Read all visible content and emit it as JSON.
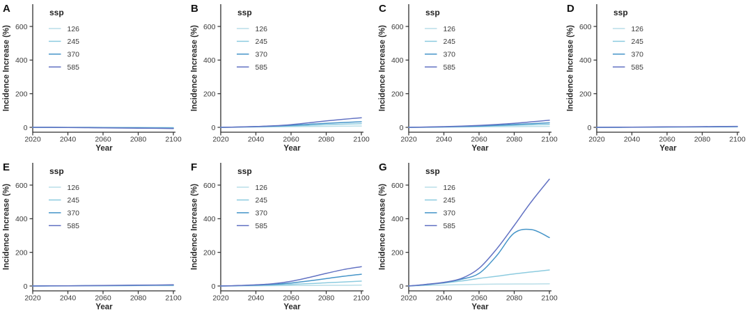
{
  "figure": {
    "ylabel": "Incidence Increase (%)",
    "xlabel": "Year",
    "legend_title": "ssp",
    "series_labels": [
      "126",
      "245",
      "370",
      "585"
    ],
    "series_colors": {
      "126": "#b9dee8",
      "245": "#8ccbdf",
      "370": "#4494c8",
      "585": "#6272c3"
    },
    "x_ticks": [
      2020,
      2040,
      2060,
      2080,
      2100
    ],
    "y_ticks": [
      0,
      200,
      400,
      600
    ],
    "axis_color": "#2e2e2e",
    "text_color": "#333333",
    "background": "#ffffff"
  },
  "chart_data": [
    {
      "type": "line",
      "panel": "A",
      "xlabel": "Year",
      "ylabel": "Incidence Increase (%)",
      "legend_title": "ssp",
      "legend_position": "top-left",
      "grid": false,
      "xlim": [
        2020,
        2100
      ],
      "ylim": [
        -25,
        700
      ],
      "x": [
        2020,
        2030,
        2040,
        2050,
        2060,
        2070,
        2080,
        2090,
        2100
      ],
      "series": [
        {
          "name": "126",
          "color": "#b9dee8",
          "values": [
            0,
            0,
            0,
            0,
            0,
            0,
            0,
            -1,
            -1
          ]
        },
        {
          "name": "245",
          "color": "#8ccbdf",
          "values": [
            0,
            0,
            0,
            0,
            -1,
            -1,
            -2,
            -2,
            -3
          ]
        },
        {
          "name": "370",
          "color": "#4494c8",
          "values": [
            0,
            0,
            -1,
            -1,
            -2,
            -3,
            -3,
            -4,
            -5
          ]
        },
        {
          "name": "585",
          "color": "#6272c3",
          "values": [
            0,
            0,
            -1,
            -2,
            -3,
            -4,
            -5,
            -6,
            -7
          ]
        }
      ]
    },
    {
      "type": "line",
      "panel": "B",
      "xlabel": "Year",
      "ylabel": "Incidence Increase (%)",
      "legend_title": "ssp",
      "legend_position": "top-left",
      "grid": false,
      "xlim": [
        2020,
        2100
      ],
      "ylim": [
        -25,
        700
      ],
      "x": [
        2020,
        2030,
        2040,
        2050,
        2060,
        2070,
        2080,
        2090,
        2100
      ],
      "series": [
        {
          "name": "126",
          "color": "#b9dee8",
          "values": [
            0,
            1,
            2,
            3,
            4,
            5,
            6,
            7,
            8
          ]
        },
        {
          "name": "245",
          "color": "#8ccbdf",
          "values": [
            0,
            1,
            3,
            5,
            8,
            12,
            16,
            19,
            22
          ]
        },
        {
          "name": "370",
          "color": "#4494c8",
          "values": [
            0,
            2,
            4,
            7,
            12,
            18,
            24,
            29,
            33
          ]
        },
        {
          "name": "585",
          "color": "#6272c3",
          "values": [
            0,
            2,
            5,
            9,
            16,
            27,
            38,
            48,
            57
          ]
        }
      ]
    },
    {
      "type": "line",
      "panel": "C",
      "xlabel": "Year",
      "ylabel": "Incidence Increase (%)",
      "legend_title": "ssp",
      "legend_position": "top-left",
      "grid": false,
      "xlim": [
        2020,
        2100
      ],
      "ylim": [
        -25,
        700
      ],
      "x": [
        2020,
        2030,
        2040,
        2050,
        2060,
        2070,
        2080,
        2090,
        2100
      ],
      "series": [
        {
          "name": "126",
          "color": "#b9dee8",
          "values": [
            0,
            0,
            1,
            2,
            3,
            4,
            4,
            5,
            6
          ]
        },
        {
          "name": "245",
          "color": "#8ccbdf",
          "values": [
            0,
            1,
            2,
            4,
            6,
            9,
            12,
            15,
            18
          ]
        },
        {
          "name": "370",
          "color": "#4494c8",
          "values": [
            0,
            1,
            3,
            5,
            8,
            12,
            17,
            22,
            27
          ]
        },
        {
          "name": "585",
          "color": "#6272c3",
          "values": [
            0,
            2,
            4,
            7,
            11,
            17,
            24,
            33,
            42
          ]
        }
      ]
    },
    {
      "type": "line",
      "panel": "D",
      "xlabel": "Year",
      "ylabel": "Incidence Increase (%)",
      "legend_title": "ssp",
      "legend_position": "top-left",
      "grid": false,
      "xlim": [
        2020,
        2100
      ],
      "ylim": [
        -25,
        700
      ],
      "x": [
        2020,
        2030,
        2040,
        2050,
        2060,
        2070,
        2080,
        2090,
        2100
      ],
      "series": [
        {
          "name": "126",
          "color": "#b9dee8",
          "values": [
            0,
            0,
            0,
            1,
            1,
            1,
            2,
            2,
            2
          ]
        },
        {
          "name": "245",
          "color": "#8ccbdf",
          "values": [
            0,
            0,
            1,
            1,
            2,
            2,
            3,
            3,
            4
          ]
        },
        {
          "name": "370",
          "color": "#4494c8",
          "values": [
            0,
            0,
            1,
            1,
            2,
            3,
            3,
            4,
            5
          ]
        },
        {
          "name": "585",
          "color": "#6272c3",
          "values": [
            0,
            1,
            1,
            2,
            3,
            3,
            4,
            5,
            6
          ]
        }
      ]
    },
    {
      "type": "line",
      "panel": "E",
      "xlabel": "Year",
      "ylabel": "Incidence Increase (%)",
      "legend_title": "ssp",
      "legend_position": "top-left",
      "grid": false,
      "xlim": [
        2020,
        2100
      ],
      "ylim": [
        -25,
        700
      ],
      "x": [
        2020,
        2030,
        2040,
        2050,
        2060,
        2070,
        2080,
        2090,
        2100
      ],
      "series": [
        {
          "name": "126",
          "color": "#b9dee8",
          "values": [
            0,
            0,
            0,
            1,
            1,
            1,
            2,
            2,
            2
          ]
        },
        {
          "name": "245",
          "color": "#8ccbdf",
          "values": [
            0,
            0,
            1,
            1,
            2,
            2,
            3,
            4,
            4
          ]
        },
        {
          "name": "370",
          "color": "#4494c8",
          "values": [
            0,
            1,
            1,
            2,
            2,
            3,
            4,
            5,
            6
          ]
        },
        {
          "name": "585",
          "color": "#6272c3",
          "values": [
            0,
            1,
            1,
            2,
            3,
            4,
            5,
            6,
            7
          ]
        }
      ]
    },
    {
      "type": "line",
      "panel": "F",
      "xlabel": "Year",
      "ylabel": "Incidence Increase (%)",
      "legend_title": "ssp",
      "legend_position": "top-left",
      "grid": false,
      "xlim": [
        2020,
        2100
      ],
      "ylim": [
        -25,
        700
      ],
      "x": [
        2020,
        2030,
        2040,
        2050,
        2060,
        2070,
        2080,
        2090,
        2100
      ],
      "series": [
        {
          "name": "126",
          "color": "#b9dee8",
          "values": [
            0,
            1,
            1,
            2,
            3,
            3,
            4,
            4,
            5
          ]
        },
        {
          "name": "245",
          "color": "#8ccbdf",
          "values": [
            0,
            1,
            3,
            6,
            10,
            14,
            19,
            24,
            29
          ]
        },
        {
          "name": "370",
          "color": "#4494c8",
          "values": [
            0,
            2,
            5,
            10,
            18,
            30,
            44,
            58,
            70
          ]
        },
        {
          "name": "585",
          "color": "#6272c3",
          "values": [
            0,
            3,
            7,
            14,
            28,
            50,
            75,
            98,
            115
          ]
        }
      ]
    },
    {
      "type": "line",
      "panel": "G",
      "xlabel": "Year",
      "ylabel": "Incidence Increase (%)",
      "legend_title": "ssp",
      "legend_position": "top-left",
      "grid": false,
      "xlim": [
        2020,
        2100
      ],
      "ylim": [
        -25,
        700
      ],
      "x": [
        2020,
        2030,
        2040,
        2050,
        2060,
        2070,
        2080,
        2090,
        2100
      ],
      "series": [
        {
          "name": "126",
          "color": "#b9dee8",
          "values": [
            0,
            3,
            6,
            8,
            10,
            11,
            12,
            12,
            13
          ]
        },
        {
          "name": "245",
          "color": "#8ccbdf",
          "values": [
            0,
            8,
            18,
            30,
            45,
            58,
            72,
            84,
            95
          ]
        },
        {
          "name": "370",
          "color": "#4494c8",
          "values": [
            0,
            8,
            20,
            40,
            75,
            180,
            315,
            335,
            288
          ]
        },
        {
          "name": "585",
          "color": "#6272c3",
          "values": [
            0,
            10,
            22,
            45,
            105,
            220,
            360,
            505,
            635
          ]
        }
      ]
    }
  ]
}
